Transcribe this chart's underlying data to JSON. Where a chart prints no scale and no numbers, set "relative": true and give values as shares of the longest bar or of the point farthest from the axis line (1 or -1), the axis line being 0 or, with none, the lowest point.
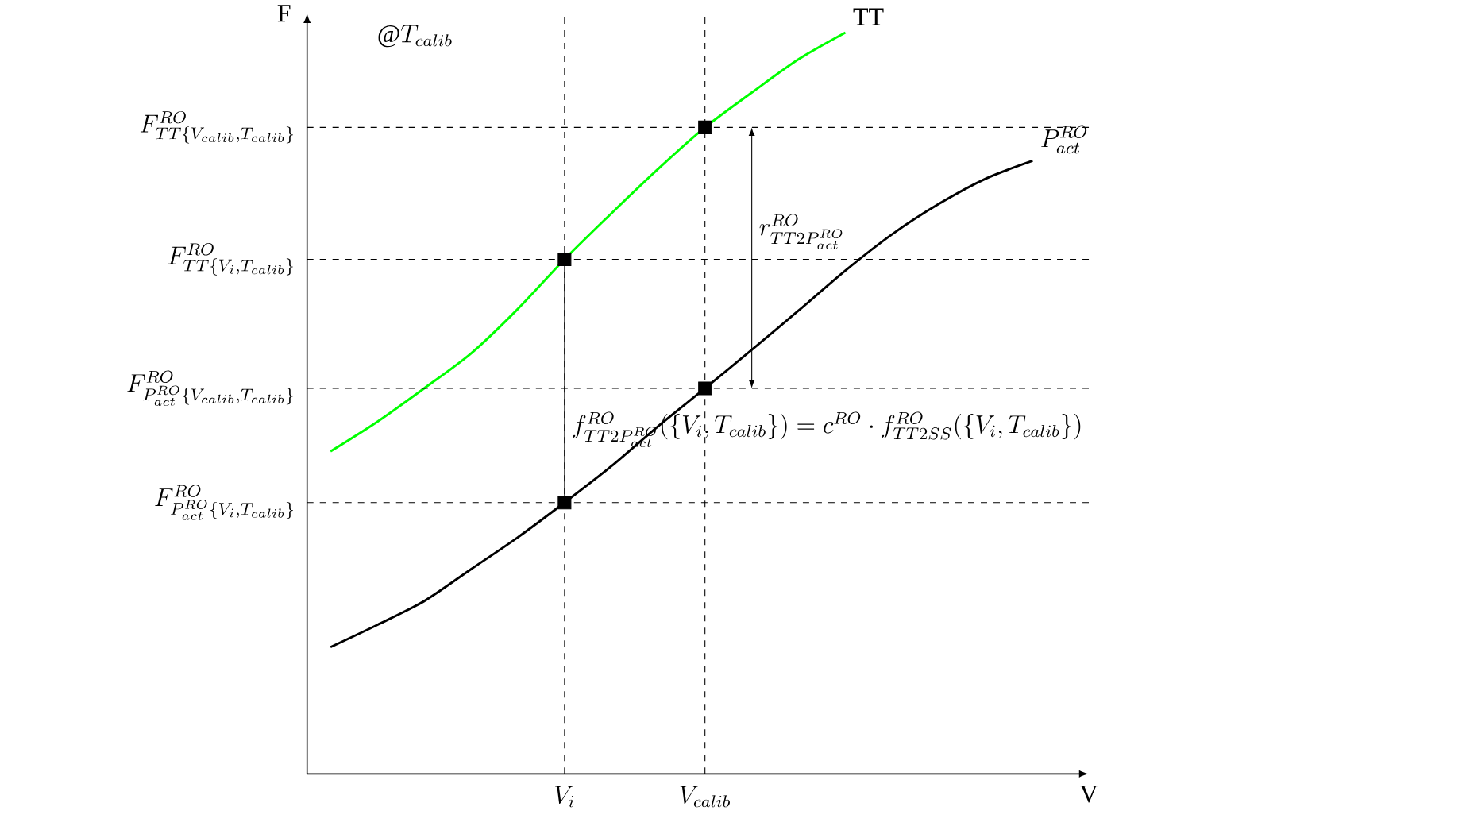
{
  "chart_data": {
    "type": "line",
    "relative": true,
    "xlabel": "V",
    "ylabel": "F",
    "grid": "x",
    "categories": [
      null,
      null,
      null,
      null,
      null,
      "V_i",
      null,
      null,
      "V_{calib}",
      null,
      null,
      null,
      null,
      null,
      null,
      null
    ],
    "tick_labels": "x",
    "series": [
      {
        "name": "\\mathrm{TT}",
        "color": "#00ff00",
        "values": [
          0.435,
          0.475,
          0.52,
          0.567,
          0.627,
          0.694,
          0.756,
          0.816,
          0.872,
          0.919,
          0.964,
          1.0,
          null,
          null,
          null,
          null
        ]
      },
      {
        "name": "P^{RO}_{act}",
        "color": "#000000",
        "values": [
          0.171,
          0.201,
          0.233,
          0.276,
          0.319,
          0.366,
          0.415,
          0.469,
          0.52,
          0.572,
          0.625,
          0.679,
          0.728,
          0.769,
          0.803,
          0.827
        ]
      },
      {
        "type": "scatter",
        "marker": "square",
        "color": "#000000",
        "values": [
          null,
          null,
          null,
          null,
          null,
          0.694,
          null,
          null,
          0.872,
          null,
          null,
          null,
          null,
          null,
          null,
          null
        ]
      },
      {
        "type": "scatter",
        "marker": "square",
        "color": "#000000",
        "values": [
          null,
          null,
          null,
          null,
          null,
          0.366,
          null,
          null,
          0.52,
          null,
          null,
          null,
          null,
          null,
          null,
          null
        ]
      }
    ],
    "ref_lines": [
      {
        "axis": "y",
        "value": 0.872,
        "label": "F^{RO}_{TT\\{V_{calib},T_{calib}\\}}",
        "line_style": "dashed"
      },
      {
        "axis": "y",
        "value": 0.694,
        "label": "F^{RO}_{TT\\{V_i,T_{calib}\\}}",
        "line_style": "dashed"
      },
      {
        "axis": "y",
        "value": 0.52,
        "label": "F^{RO}_{P^{RO}_{act}\\{V_{calib},T_{calib}\\}}",
        "line_style": "dashed"
      },
      {
        "axis": "y",
        "value": 0.366,
        "label": "F^{RO}_{P^{RO}_{act}\\{V_i,T_{calib}\\}}",
        "line_style": "dashed"
      }
    ],
    "annotations": [
      "@T_{calib}",
      "r^{RO}_{TT2P^{RO}_{act}}",
      "f^{RO}_{TT2P^{RO}_{act}}(\\{V_i,T_{calib}\\}) = c^{RO}\\cdot f^{RO}_{TT2SS}(\\{V_i,T_{calib}\\})"
    ]
  }
}
